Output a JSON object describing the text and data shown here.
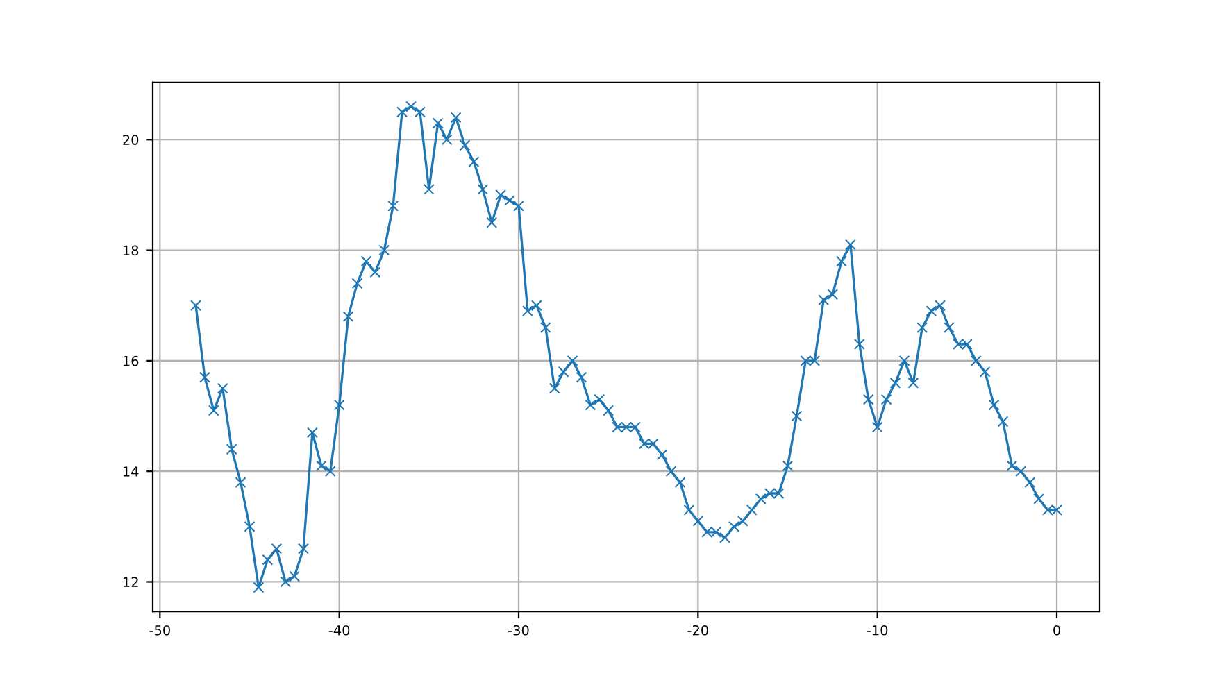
{
  "chart_data": {
    "type": "line",
    "marker": "cross",
    "grid": true,
    "x": [
      -48,
      -47.5,
      -47,
      -46.5,
      -46,
      -45.5,
      -45,
      -44.5,
      -44,
      -43.5,
      -43,
      -42.5,
      -42,
      -41.5,
      -41,
      -40.5,
      -40,
      -39.5,
      -39,
      -38.5,
      -38,
      -37.5,
      -37,
      -36.5,
      -36,
      -35.5,
      -35,
      -34.5,
      -34,
      -33.5,
      -33,
      -32.5,
      -32,
      -31.5,
      -31,
      -30.5,
      -30,
      -29.5,
      -29,
      -28.5,
      -28,
      -27.5,
      -27,
      -26.5,
      -26,
      -25.5,
      -25,
      -24.5,
      -24,
      -23.5,
      -23,
      -22.5,
      -22,
      -21.5,
      -21,
      -20.5,
      -20,
      -19.5,
      -19,
      -18.5,
      -18,
      -17.5,
      -17,
      -16.5,
      -16,
      -15.5,
      -15,
      -14.5,
      -14,
      -13.5,
      -13,
      -12.5,
      -12,
      -11.5,
      -11,
      -10.5,
      -10,
      -9.5,
      -9,
      -8.5,
      -8,
      -7.5,
      -7,
      -6.5,
      -6,
      -5.5,
      -5,
      -4.5,
      -4,
      -3.5,
      -3,
      -2.5,
      -2,
      -1.5,
      -1,
      -0.5,
      0
    ],
    "series": [
      {
        "color": "#1f77b4",
        "values": [
          17.0,
          15.7,
          15.1,
          15.5,
          14.4,
          13.8,
          13.0,
          11.9,
          12.4,
          12.6,
          12.0,
          12.1,
          12.6,
          14.7,
          14.1,
          14.0,
          15.2,
          16.8,
          17.4,
          17.8,
          17.6,
          18.0,
          18.8,
          20.5,
          20.6,
          20.5,
          19.1,
          20.3,
          20.0,
          20.4,
          19.9,
          19.6,
          19.1,
          18.5,
          19.0,
          18.9,
          18.8,
          16.9,
          17.0,
          16.6,
          15.5,
          15.8,
          16.0,
          15.7,
          15.2,
          15.3,
          15.1,
          14.8,
          14.8,
          14.8,
          14.5,
          14.5,
          14.3,
          14.0,
          13.8,
          13.3,
          13.1,
          12.9,
          12.9,
          12.8,
          13.0,
          13.1,
          13.3,
          13.5,
          13.6,
          13.6,
          14.1,
          15.0,
          16.0,
          16.0,
          17.1,
          17.2,
          17.8,
          18.1,
          16.3,
          15.3,
          14.8,
          15.3,
          15.6,
          16.0,
          15.6,
          16.6,
          16.9,
          17.0,
          16.6,
          16.3,
          16.3,
          16.0,
          15.8,
          15.2,
          14.9,
          14.1,
          14.0,
          13.8,
          13.5,
          13.3,
          13.3
        ]
      }
    ],
    "xlim": [
      -50.4,
      2.4
    ],
    "ylim": [
      11.465,
      21.035
    ],
    "xticks": [
      -50,
      -40,
      -30,
      -20,
      -10,
      0
    ],
    "yticks": [
      12,
      14,
      16,
      18,
      20
    ]
  }
}
